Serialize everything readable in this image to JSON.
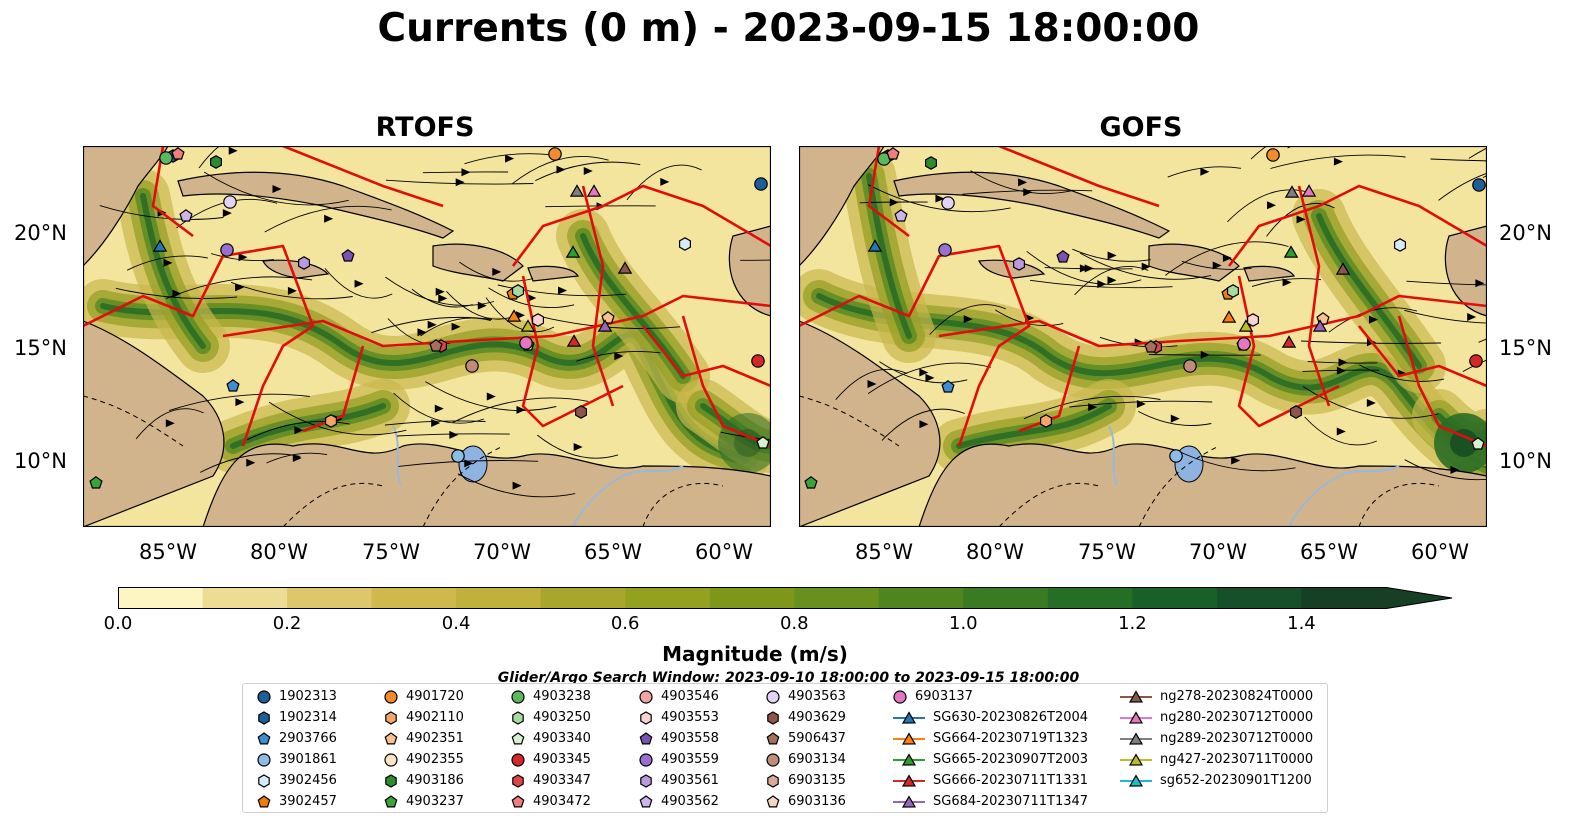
{
  "title": "Currents (0 m) - 2023-09-15 18:00:00",
  "panels": [
    {
      "name": "RTOFS"
    },
    {
      "name": "GOFS"
    }
  ],
  "lat_ticks": [
    "20°N",
    "15°N",
    "10°N"
  ],
  "lon_ticks": [
    "85°W",
    "80°W",
    "75°W",
    "70°W",
    "65°W",
    "60°W"
  ],
  "colorbar": {
    "label": "Magnitude (m/s)",
    "ticks": [
      "0.0",
      "0.2",
      "0.4",
      "0.6",
      "0.8",
      "1.0",
      "1.2",
      "1.4"
    ],
    "min": 0.0,
    "max": 1.5,
    "step": 0.1,
    "extend": "max",
    "colors": [
      "#fdf6c3",
      "#eddc94",
      "#dec76b",
      "#cfb84c",
      "#bfb13b",
      "#a9a62d",
      "#94a020",
      "#7e971a",
      "#68901c",
      "#4f851f",
      "#3a7a22",
      "#266d26",
      "#195f2a",
      "#15502a",
      "#163f26"
    ]
  },
  "legend": {
    "title": "Glider/Argo Search Window: 2023-09-10 18:00:00 to 2023-09-15 18:00:00",
    "items": [
      {
        "label": "1902313",
        "marker": "circle",
        "color": "#1f5f99"
      },
      {
        "label": "1902314",
        "marker": "hexagon",
        "color": "#1f5f99"
      },
      {
        "label": "2903766",
        "marker": "pentagon",
        "color": "#3b8ed0"
      },
      {
        "label": "3901861",
        "marker": "circle",
        "color": "#8cbde6"
      },
      {
        "label": "3902456",
        "marker": "hexagon",
        "color": "#d6ebfa"
      },
      {
        "label": "3902457",
        "marker": "pentagon",
        "color": "#f07c0e"
      },
      {
        "label": "4901720",
        "marker": "circle",
        "color": "#f28a2e"
      },
      {
        "label": "4902110",
        "marker": "hexagon",
        "color": "#f6a56a"
      },
      {
        "label": "4902351",
        "marker": "pentagon",
        "color": "#f8c190"
      },
      {
        "label": "4902355",
        "marker": "circle",
        "color": "#fde5c8"
      },
      {
        "label": "4903186",
        "marker": "hexagon",
        "color": "#2d8a2d"
      },
      {
        "label": "4903237",
        "marker": "pentagon",
        "color": "#3aa43a"
      },
      {
        "label": "4903238",
        "marker": "circle",
        "color": "#5cb85c"
      },
      {
        "label": "4903250",
        "marker": "hexagon",
        "color": "#a6dca0"
      },
      {
        "label": "4903340",
        "marker": "pentagon",
        "color": "#d4f2cf"
      },
      {
        "label": "4903345",
        "marker": "circle",
        "color": "#d62728"
      },
      {
        "label": "4903347",
        "marker": "hexagon",
        "color": "#df4545"
      },
      {
        "label": "4903472",
        "marker": "pentagon",
        "color": "#f07e7e"
      },
      {
        "label": "4903546",
        "marker": "circle",
        "color": "#f4a3a3"
      },
      {
        "label": "4903553",
        "marker": "hexagon",
        "color": "#fbd3d3"
      },
      {
        "label": "4903558",
        "marker": "pentagon",
        "color": "#7a52b3"
      },
      {
        "label": "4903559",
        "marker": "circle",
        "color": "#9b6fcf"
      },
      {
        "label": "4903561",
        "marker": "hexagon",
        "color": "#b99ae0"
      },
      {
        "label": "4903562",
        "marker": "pentagon",
        "color": "#cdb5ec"
      },
      {
        "label": "4903563",
        "marker": "circle",
        "color": "#e2d2f4"
      },
      {
        "label": "4903629",
        "marker": "hexagon",
        "color": "#8c564b"
      },
      {
        "label": "5906437",
        "marker": "pentagon",
        "color": "#a6705f"
      },
      {
        "label": "6903134",
        "marker": "circle",
        "color": "#c08b7a"
      },
      {
        "label": "6903135",
        "marker": "hexagon",
        "color": "#d9ab98"
      },
      {
        "label": "6903136",
        "marker": "pentagon",
        "color": "#f5d5c8"
      },
      {
        "label": "6903137",
        "marker": "circle",
        "color": "#e377c2"
      },
      {
        "label": "SG630-20230826T2004",
        "marker": "triangle-line",
        "color": "#1f77b4"
      },
      {
        "label": "SG664-20230719T1323",
        "marker": "triangle-line",
        "color": "#ff7f0e"
      },
      {
        "label": "SG665-20230907T2003",
        "marker": "triangle-line",
        "color": "#2ca02c"
      },
      {
        "label": "SG666-20230711T1331",
        "marker": "triangle-line",
        "color": "#d62728"
      },
      {
        "label": "SG684-20230711T1347",
        "marker": "triangle-line",
        "color": "#9467bd"
      },
      {
        "label": "ng278-20230824T0000",
        "marker": "triangle-line",
        "color": "#8c564b"
      },
      {
        "label": "ng280-20230712T0000",
        "marker": "triangle-line",
        "color": "#e377c2"
      },
      {
        "label": "ng289-20230712T0000",
        "marker": "triangle-line",
        "color": "#7f7f7f"
      },
      {
        "label": "ng427-20230711T0000",
        "marker": "triangle-line",
        "color": "#bcbd22"
      },
      {
        "label": "sg652-20230901T1200",
        "marker": "triangle-line",
        "color": "#17becf"
      }
    ]
  }
}
